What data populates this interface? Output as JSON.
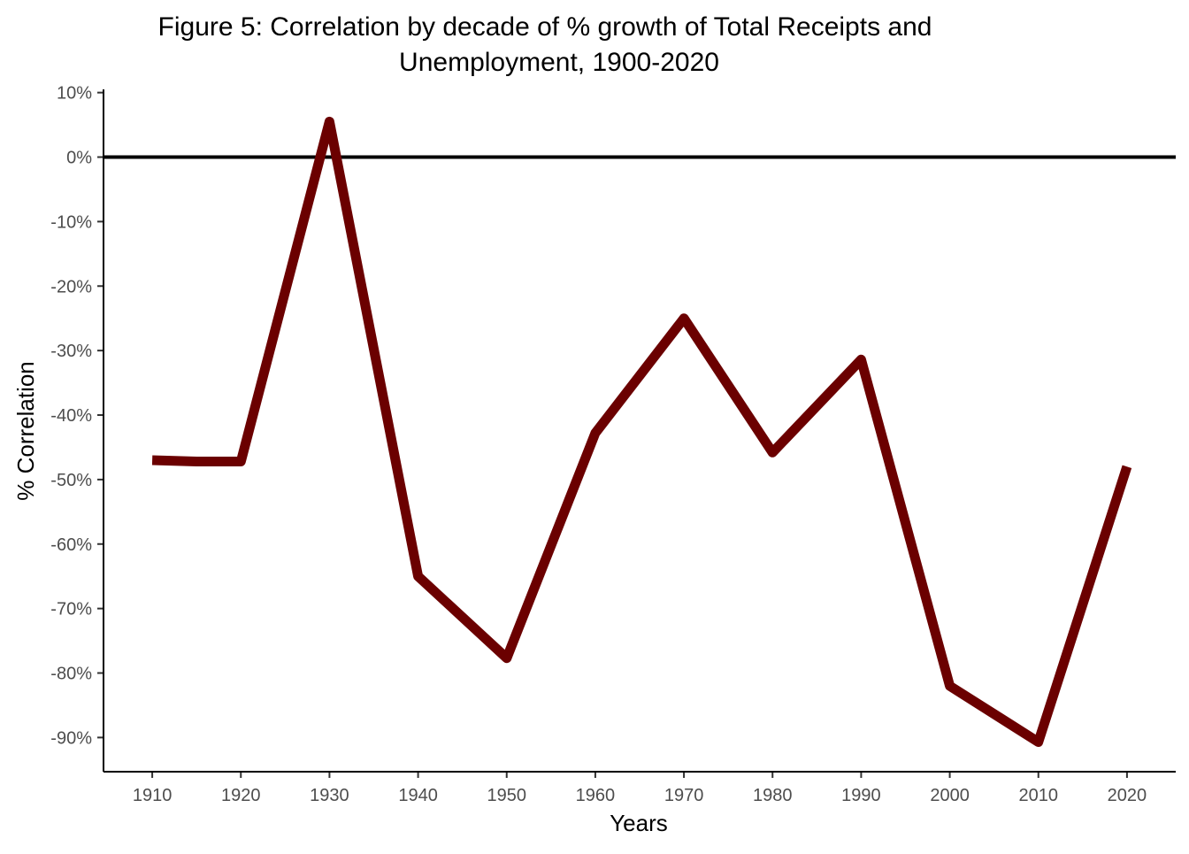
{
  "chart_data": {
    "type": "line",
    "title_line1": "Figure 5: Correlation by decade of % growth of Total Receipts and",
    "title_line2": "Unemployment, 1900-2020",
    "xlabel": "Years",
    "ylabel": "% Correlation",
    "x": [
      1910,
      1915,
      1920,
      1930,
      1940,
      1950,
      1960,
      1970,
      1980,
      1990,
      2000,
      2010,
      2020
    ],
    "series": [
      {
        "name": "Correlation",
        "color": "#6b0000",
        "values": [
          -47,
          -47.2,
          -47.2,
          5.5,
          -65,
          -77.7,
          -42.8,
          -25,
          -45.8,
          -31.4,
          -82,
          -90.7,
          -48
        ]
      }
    ],
    "xticks": [
      1910,
      1920,
      1930,
      1940,
      1950,
      1960,
      1970,
      1980,
      1990,
      2000,
      2010,
      2020
    ],
    "xtick_labels": [
      "1910",
      "1920",
      "1930",
      "1940",
      "1950",
      "1960",
      "1970",
      "1980",
      "1990",
      "2000",
      "2010",
      "2020"
    ],
    "yticks": [
      10,
      0,
      -10,
      -20,
      -30,
      -40,
      -50,
      -60,
      -70,
      -80,
      -90
    ],
    "ytick_labels": [
      "10%",
      "0%",
      "-10%",
      "-20%",
      "-30%",
      "-40%",
      "-50%",
      "-60%",
      "-70%",
      "-80%",
      "-90%"
    ],
    "xlim": [
      1904.5,
      2025.5
    ],
    "ylim": [
      -95.3,
      10.5
    ],
    "reference_line": {
      "y": 0,
      "color": "#000000"
    },
    "grid": false,
    "legend": "none"
  }
}
